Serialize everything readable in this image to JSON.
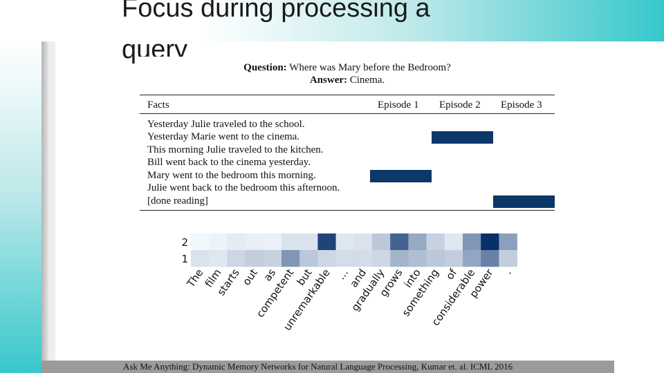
{
  "slide": {
    "title_lines": [
      "Focus during processing a",
      "query"
    ],
    "citation": "Ask Me Anything: Dynamic Memory Networks for Natural Language Processing, Kumar et. al. ICML 2016"
  },
  "qa": {
    "question_label": "Question:",
    "question": "Where was Mary before the Bedroom?",
    "answer_label": "Answer:",
    "answer": "Cinema."
  },
  "table": {
    "header": {
      "facts": "Facts",
      "episodes": [
        "Episode 1",
        "Episode 2",
        "Episode 3"
      ]
    },
    "facts": [
      "Yesterday Julie traveled to the school.",
      "Yesterday Marie went to the cinema.",
      "This morning Julie traveled to the kitchen.",
      "Bill went back to the cinema yesterday.",
      "Mary went to the bedroom this morning.",
      "Julie went back to the bedroom this afternoon.",
      "[done reading]"
    ],
    "attention": [
      {
        "episode": 2,
        "fact_index": 1
      },
      {
        "episode": 1,
        "fact_index": 4
      },
      {
        "episode": 3,
        "fact_index": 6
      }
    ],
    "attention_color": "#0b3769"
  },
  "chart_data": {
    "type": "heatmap",
    "y_labels": [
      "2",
      "1"
    ],
    "x_labels": [
      "The",
      "film",
      "starts",
      "out",
      "as",
      "competent",
      "but",
      "unremarkable",
      "...",
      "and",
      "gradually",
      "grows",
      "into",
      "something",
      "of",
      "considerable",
      "power",
      "."
    ],
    "values": [
      [
        0.02,
        0.04,
        0.08,
        0.06,
        0.05,
        0.12,
        0.12,
        0.9,
        0.1,
        0.12,
        0.25,
        0.75,
        0.4,
        0.2,
        0.1,
        0.5,
        1.0,
        0.45
      ],
      [
        0.12,
        0.1,
        0.18,
        0.22,
        0.2,
        0.5,
        0.25,
        0.18,
        0.15,
        0.15,
        0.18,
        0.35,
        0.3,
        0.25,
        0.22,
        0.42,
        0.6,
        0.22
      ]
    ],
    "colormap": "Blues",
    "color_low": "#f7fbff",
    "color_high": "#08306b"
  }
}
